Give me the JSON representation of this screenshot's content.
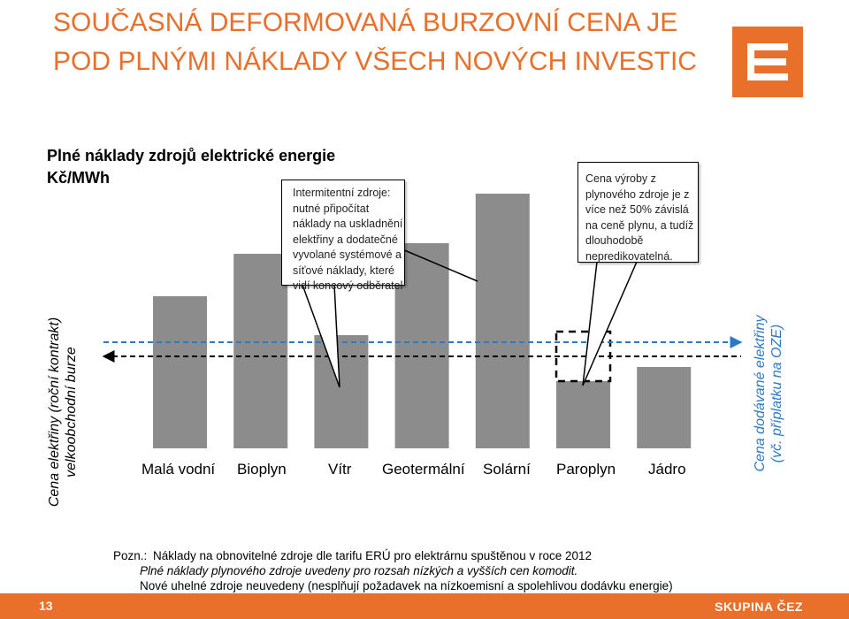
{
  "title": {
    "line1": "SOUČASNÁ DEFORMOVANÁ BURZOVNÍ CENA JE",
    "line2": "POD PLNÝMI NÁKLADY VŠECH NOVÝCH INVESTIC"
  },
  "chart_title": {
    "line1": "Plné náklady zdrojů elektrické energie",
    "line2": "Kč/MWh"
  },
  "callouts": {
    "intermittent": "Intermitentní zdroje:\nnutné připočítat\nnáklady na uskladnění\nelektřiny a dodatečné\nvyvolané systémové a\nsíťové náklady, které\nvidí koncový odběratel",
    "gas": "Cena výroby z\nplynového zdroje je z\nvíce než 50% závislá\nna ceně plynu, a tudíž\ndlouhodobě\nnepredikovatelná."
  },
  "axis_labels": {
    "left_line1": "Cena elektřiny (roční kontrakt)",
    "left_line2": "velkoobchodní burze",
    "right_line1": "Cena dodávané elektřiny",
    "right_line2": "(vč. příplatku na OZE)"
  },
  "chart_data": {
    "type": "bar",
    "categories": [
      "Malá vodní",
      "Bioplyn",
      "Vítr",
      "Geotermální",
      "Solární",
      "Paroplyn",
      "Jádro"
    ],
    "values": [
      43,
      55,
      32,
      58,
      72,
      19,
      23
    ],
    "uncertainty_top": [
      null,
      null,
      null,
      null,
      null,
      33,
      null
    ],
    "reference_lines": {
      "wholesale_price": 26,
      "delivered_price": 30
    },
    "ylim": [
      0,
      80
    ],
    "colors": {
      "bars": "#8c8c8c",
      "wholesale_line": "#000000",
      "delivered_line": "#2b7ac4"
    }
  },
  "note": {
    "prefix": "Pozn.:",
    "line1": "Náklady na obnovitelné zdroje dle tarifu ERÚ pro elektrárnu spuštěnou v roce 2012",
    "line2": "Plné náklady plynového zdroje uvedeny pro rozsah nízkých a vyšších cen komodit.",
    "line3": "Nové uhelné zdroje neuvedeny (nesplňují požadavek na nízkoemisní a spolehlivou dodávku energie)"
  },
  "footer": {
    "page_number": "13",
    "brand": "SKUPINA ČEZ"
  },
  "colors": {
    "accent": "#e8702a",
    "blue": "#2b7ac4"
  }
}
